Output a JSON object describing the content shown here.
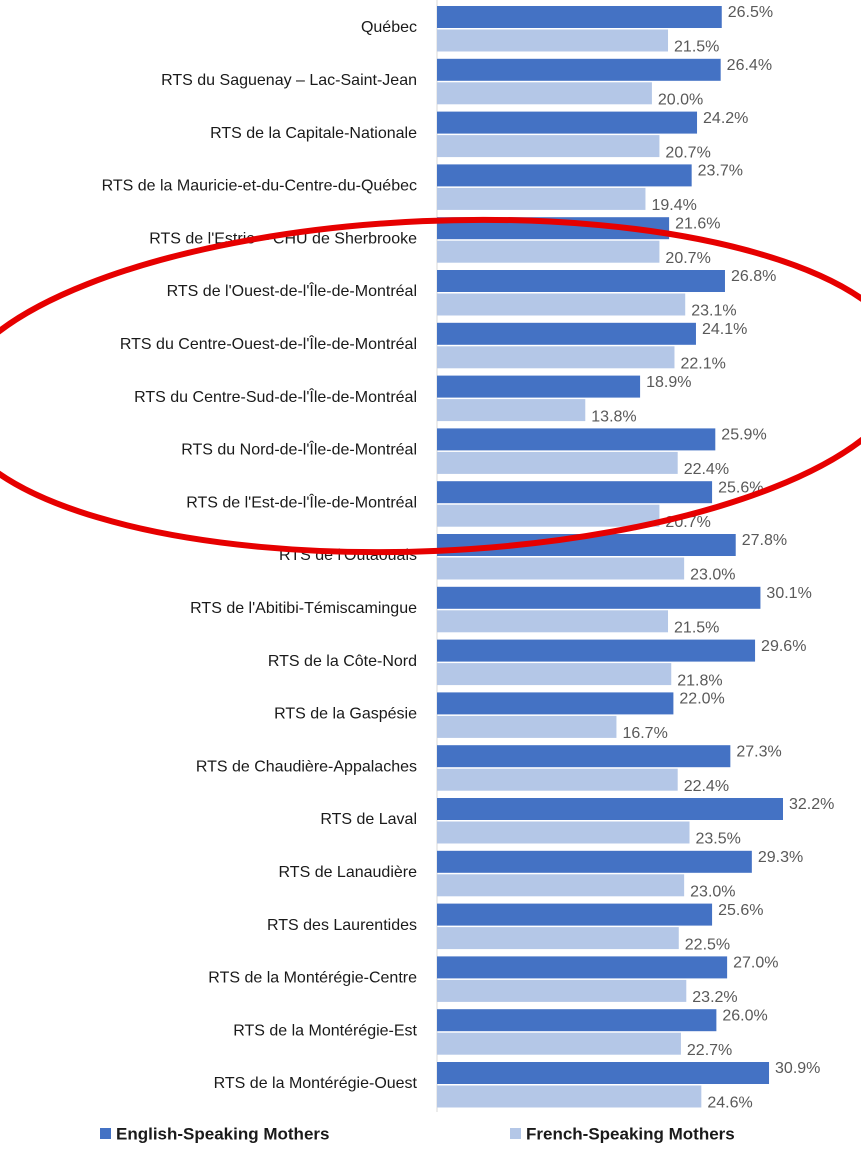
{
  "chart_data": {
    "type": "bar",
    "orientation": "horizontal",
    "categories": [
      "Québec",
      "RTS du Saguenay – Lac-Saint-Jean",
      "RTS de la Capitale-Nationale",
      "RTS de la Mauricie-et-du-Centre-du-Québec",
      "RTS de l'Estrie – CHU de Sherbrooke",
      "RTS de l'Ouest-de-l'Île-de-Montréal",
      "RTS du Centre-Ouest-de-l'Île-de-Montréal",
      "RTS du Centre-Sud-de-l'Île-de-Montréal",
      "RTS du Nord-de-l'Île-de-Montréal",
      "RTS de l'Est-de-l'Île-de-Montréal",
      "RTS de l'Outaouais",
      "RTS de l'Abitibi-Témiscamingue",
      "RTS de la Côte-Nord",
      "RTS de la Gaspésie",
      "RTS de Chaudière-Appalaches",
      "RTS de Laval",
      "RTS de Lanaudière",
      "RTS des Laurentides",
      "RTS de la Montérégie-Centre",
      "RTS de la Montérégie-Est",
      "RTS de la Montérégie-Ouest"
    ],
    "series": [
      {
        "name": "English-Speaking Mothers",
        "color": "#4472c4",
        "values": [
          26.5,
          26.4,
          24.2,
          23.7,
          21.6,
          26.8,
          24.1,
          18.9,
          25.9,
          25.6,
          27.8,
          30.1,
          29.6,
          22.0,
          27.3,
          32.2,
          29.3,
          25.6,
          27.0,
          26.0,
          30.9
        ],
        "value_labels": [
          "26.5%",
          "26.4%",
          "24.2%",
          "23.7%",
          "21.6%",
          "26.8%",
          "24.1%",
          "18.9%",
          "25.9%",
          "25.6%",
          "27.8%",
          "30.1%",
          "29.6%",
          "22.0%",
          "27.3%",
          "32.2%",
          "29.3%",
          "25.6%",
          "27.0%",
          "26.0%",
          "30.9%"
        ]
      },
      {
        "name": "French-Speaking Mothers",
        "color": "#b4c7e7",
        "values": [
          21.5,
          20.0,
          20.7,
          19.4,
          20.7,
          23.1,
          22.1,
          13.8,
          22.4,
          20.7,
          23.0,
          21.5,
          21.8,
          16.7,
          22.4,
          23.5,
          23.0,
          22.5,
          23.2,
          22.7,
          24.6
        ],
        "value_labels": [
          "21.5%",
          "20.0%",
          "20.7%",
          "19.4%",
          "20.7%",
          "23.1%",
          "22.1%",
          "13.8%",
          "22.4%",
          "20.7%",
          "23.0%",
          "21.5%",
          "21.8%",
          "16.7%",
          "22.4%",
          "23.5%",
          "23.0%",
          "22.5%",
          "23.2%",
          "22.7%",
          "24.6%"
        ]
      }
    ],
    "legend": "bottom"
  }
}
